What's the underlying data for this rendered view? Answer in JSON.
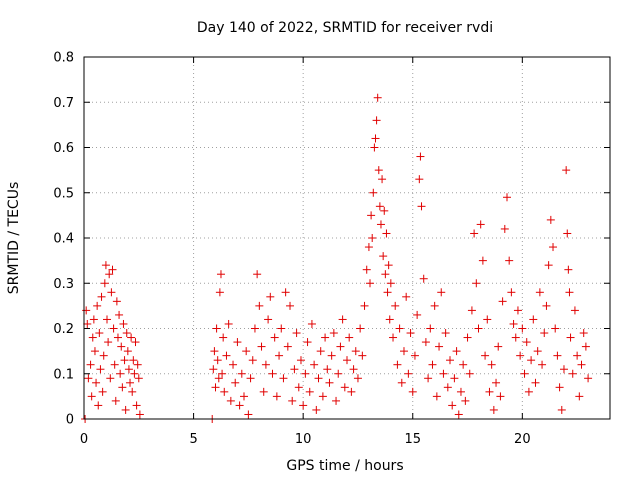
{
  "chart_data": {
    "type": "scatter",
    "title": "Day 140 of 2022, SRMTID for receiver rvdi",
    "xlabel": "GPS time / hours",
    "ylabel": "SRMTID / TECUs",
    "xlim": [
      0,
      24
    ],
    "ylim": [
      0,
      0.8
    ],
    "xticks": [
      0,
      5,
      10,
      15,
      20
    ],
    "xtick_labels": [
      "0",
      "5",
      "10",
      "15",
      "20"
    ],
    "yticks": [
      0,
      0.1,
      0.2,
      0.3,
      0.4,
      0.5,
      0.6,
      0.7,
      0.8
    ],
    "ytick_labels": [
      "0",
      "0.1",
      "0.2",
      "0.3",
      "0.4",
      "0.5",
      "0.6",
      "0.7",
      "0.8"
    ],
    "grid": true,
    "marker": "+",
    "color": "#e00000",
    "series": [
      {
        "name": "rvdi",
        "points": [
          [
            0.05,
            0.0
          ],
          [
            0.1,
            0.24
          ],
          [
            0.15,
            0.21
          ],
          [
            0.2,
            0.09
          ],
          [
            0.3,
            0.12
          ],
          [
            0.35,
            0.05
          ],
          [
            0.4,
            0.18
          ],
          [
            0.45,
            0.22
          ],
          [
            0.5,
            0.15
          ],
          [
            0.55,
            0.08
          ],
          [
            0.6,
            0.25
          ],
          [
            0.65,
            0.03
          ],
          [
            0.7,
            0.19
          ],
          [
            0.75,
            0.11
          ],
          [
            0.8,
            0.27
          ],
          [
            0.85,
            0.06
          ],
          [
            0.9,
            0.14
          ],
          [
            0.95,
            0.3
          ],
          [
            1.0,
            0.34
          ],
          [
            1.05,
            0.22
          ],
          [
            1.1,
            0.17
          ],
          [
            1.15,
            0.32
          ],
          [
            1.2,
            0.09
          ],
          [
            1.25,
            0.28
          ],
          [
            1.3,
            0.33
          ],
          [
            1.35,
            0.2
          ],
          [
            1.4,
            0.12
          ],
          [
            1.45,
            0.04
          ],
          [
            1.5,
            0.26
          ],
          [
            1.55,
            0.18
          ],
          [
            1.6,
            0.23
          ],
          [
            1.65,
            0.1
          ],
          [
            1.7,
            0.16
          ],
          [
            1.75,
            0.07
          ],
          [
            1.8,
            0.21
          ],
          [
            1.85,
            0.13
          ],
          [
            1.9,
            0.02
          ],
          [
            1.95,
            0.19
          ],
          [
            2.0,
            0.15
          ],
          [
            2.05,
            0.11
          ],
          [
            2.1,
            0.08
          ],
          [
            2.15,
            0.18
          ],
          [
            2.2,
            0.06
          ],
          [
            2.25,
            0.13
          ],
          [
            2.3,
            0.1
          ],
          [
            2.35,
            0.17
          ],
          [
            2.4,
            0.03
          ],
          [
            2.45,
            0.12
          ],
          [
            2.5,
            0.09
          ],
          [
            2.55,
            0.01
          ],
          [
            5.85,
            0.0
          ],
          [
            5.9,
            0.11
          ],
          [
            5.95,
            0.15
          ],
          [
            6.0,
            0.07
          ],
          [
            6.05,
            0.2
          ],
          [
            6.1,
            0.13
          ],
          [
            6.15,
            0.09
          ],
          [
            6.2,
            0.28
          ],
          [
            6.25,
            0.32
          ],
          [
            6.3,
            0.1
          ],
          [
            6.35,
            0.18
          ],
          [
            6.4,
            0.06
          ],
          [
            6.5,
            0.14
          ],
          [
            6.6,
            0.21
          ],
          [
            6.7,
            0.04
          ],
          [
            6.8,
            0.12
          ],
          [
            6.9,
            0.08
          ],
          [
            7.0,
            0.17
          ],
          [
            7.1,
            0.03
          ],
          [
            7.2,
            0.1
          ],
          [
            7.3,
            0.05
          ],
          [
            7.4,
            0.15
          ],
          [
            7.5,
            0.01
          ],
          [
            7.6,
            0.09
          ],
          [
            7.7,
            0.13
          ],
          [
            7.8,
            0.2
          ],
          [
            7.9,
            0.32
          ],
          [
            8.0,
            0.25
          ],
          [
            8.1,
            0.16
          ],
          [
            8.2,
            0.06
          ],
          [
            8.3,
            0.12
          ],
          [
            8.4,
            0.22
          ],
          [
            8.5,
            0.27
          ],
          [
            8.6,
            0.1
          ],
          [
            8.7,
            0.18
          ],
          [
            8.8,
            0.05
          ],
          [
            8.9,
            0.14
          ],
          [
            9.0,
            0.2
          ],
          [
            9.1,
            0.09
          ],
          [
            9.2,
            0.28
          ],
          [
            9.3,
            0.16
          ],
          [
            9.4,
            0.25
          ],
          [
            9.5,
            0.04
          ],
          [
            9.6,
            0.11
          ],
          [
            9.7,
            0.19
          ],
          [
            9.8,
            0.07
          ],
          [
            9.9,
            0.13
          ],
          [
            10.0,
            0.03
          ],
          [
            10.1,
            0.1
          ],
          [
            10.2,
            0.17
          ],
          [
            10.3,
            0.06
          ],
          [
            10.4,
            0.21
          ],
          [
            10.5,
            0.12
          ],
          [
            10.6,
            0.02
          ],
          [
            10.7,
            0.09
          ],
          [
            10.8,
            0.15
          ],
          [
            10.9,
            0.05
          ],
          [
            11.0,
            0.18
          ],
          [
            11.1,
            0.11
          ],
          [
            11.2,
            0.08
          ],
          [
            11.3,
            0.14
          ],
          [
            11.4,
            0.19
          ],
          [
            11.5,
            0.04
          ],
          [
            11.6,
            0.1
          ],
          [
            11.7,
            0.16
          ],
          [
            11.8,
            0.22
          ],
          [
            11.9,
            0.07
          ],
          [
            12.0,
            0.13
          ],
          [
            12.1,
            0.18
          ],
          [
            12.2,
            0.06
          ],
          [
            12.3,
            0.11
          ],
          [
            12.4,
            0.15
          ],
          [
            12.5,
            0.09
          ],
          [
            12.6,
            0.2
          ],
          [
            12.7,
            0.14
          ],
          [
            12.8,
            0.25
          ],
          [
            12.9,
            0.33
          ],
          [
            13.0,
            0.38
          ],
          [
            13.05,
            0.3
          ],
          [
            13.1,
            0.45
          ],
          [
            13.15,
            0.4
          ],
          [
            13.2,
            0.5
          ],
          [
            13.25,
            0.6
          ],
          [
            13.3,
            0.62
          ],
          [
            13.35,
            0.66
          ],
          [
            13.4,
            0.71
          ],
          [
            13.45,
            0.55
          ],
          [
            13.5,
            0.47
          ],
          [
            13.55,
            0.43
          ],
          [
            13.6,
            0.53
          ],
          [
            13.65,
            0.36
          ],
          [
            13.7,
            0.46
          ],
          [
            13.75,
            0.32
          ],
          [
            13.8,
            0.41
          ],
          [
            13.85,
            0.28
          ],
          [
            13.9,
            0.34
          ],
          [
            13.95,
            0.22
          ],
          [
            14.0,
            0.3
          ],
          [
            14.1,
            0.18
          ],
          [
            14.2,
            0.25
          ],
          [
            14.3,
            0.12
          ],
          [
            14.4,
            0.2
          ],
          [
            14.5,
            0.08
          ],
          [
            14.6,
            0.15
          ],
          [
            14.7,
            0.27
          ],
          [
            14.8,
            0.1
          ],
          [
            14.9,
            0.19
          ],
          [
            15.0,
            0.06
          ],
          [
            15.1,
            0.14
          ],
          [
            15.2,
            0.23
          ],
          [
            15.3,
            0.53
          ],
          [
            15.35,
            0.58
          ],
          [
            15.4,
            0.47
          ],
          [
            15.5,
            0.31
          ],
          [
            15.6,
            0.17
          ],
          [
            15.7,
            0.09
          ],
          [
            15.8,
            0.2
          ],
          [
            15.9,
            0.12
          ],
          [
            16.0,
            0.25
          ],
          [
            16.1,
            0.05
          ],
          [
            16.2,
            0.16
          ],
          [
            16.3,
            0.28
          ],
          [
            16.4,
            0.1
          ],
          [
            16.5,
            0.19
          ],
          [
            16.6,
            0.07
          ],
          [
            16.7,
            0.13
          ],
          [
            16.8,
            0.03
          ],
          [
            16.9,
            0.09
          ],
          [
            17.0,
            0.15
          ],
          [
            17.1,
            0.01
          ],
          [
            17.2,
            0.06
          ],
          [
            17.3,
            0.12
          ],
          [
            17.4,
            0.04
          ],
          [
            17.5,
            0.18
          ],
          [
            17.6,
            0.1
          ],
          [
            17.7,
            0.24
          ],
          [
            17.8,
            0.41
          ],
          [
            17.9,
            0.3
          ],
          [
            18.0,
            0.2
          ],
          [
            18.1,
            0.43
          ],
          [
            18.2,
            0.35
          ],
          [
            18.3,
            0.14
          ],
          [
            18.4,
            0.22
          ],
          [
            18.5,
            0.06
          ],
          [
            18.6,
            0.12
          ],
          [
            18.7,
            0.02
          ],
          [
            18.8,
            0.08
          ],
          [
            18.9,
            0.16
          ],
          [
            19.0,
            0.05
          ],
          [
            19.1,
            0.26
          ],
          [
            19.2,
            0.42
          ],
          [
            19.3,
            0.49
          ],
          [
            19.4,
            0.35
          ],
          [
            19.5,
            0.28
          ],
          [
            19.6,
            0.21
          ],
          [
            19.7,
            0.18
          ],
          [
            19.8,
            0.24
          ],
          [
            19.9,
            0.14
          ],
          [
            20.0,
            0.2
          ],
          [
            20.1,
            0.1
          ],
          [
            20.2,
            0.17
          ],
          [
            20.3,
            0.06
          ],
          [
            20.4,
            0.13
          ],
          [
            20.5,
            0.22
          ],
          [
            20.6,
            0.08
          ],
          [
            20.7,
            0.15
          ],
          [
            20.8,
            0.28
          ],
          [
            20.9,
            0.12
          ],
          [
            21.0,
            0.19
          ],
          [
            21.1,
            0.25
          ],
          [
            21.2,
            0.34
          ],
          [
            21.3,
            0.44
          ],
          [
            21.4,
            0.38
          ],
          [
            21.5,
            0.2
          ],
          [
            21.6,
            0.14
          ],
          [
            21.7,
            0.07
          ],
          [
            21.8,
            0.02
          ],
          [
            21.9,
            0.11
          ],
          [
            22.0,
            0.55
          ],
          [
            22.05,
            0.41
          ],
          [
            22.1,
            0.33
          ],
          [
            22.15,
            0.28
          ],
          [
            22.2,
            0.18
          ],
          [
            22.3,
            0.1
          ],
          [
            22.4,
            0.24
          ],
          [
            22.5,
            0.14
          ],
          [
            22.6,
            0.05
          ],
          [
            22.7,
            0.12
          ],
          [
            22.8,
            0.19
          ],
          [
            22.9,
            0.16
          ],
          [
            23.0,
            0.09
          ]
        ]
      }
    ]
  }
}
